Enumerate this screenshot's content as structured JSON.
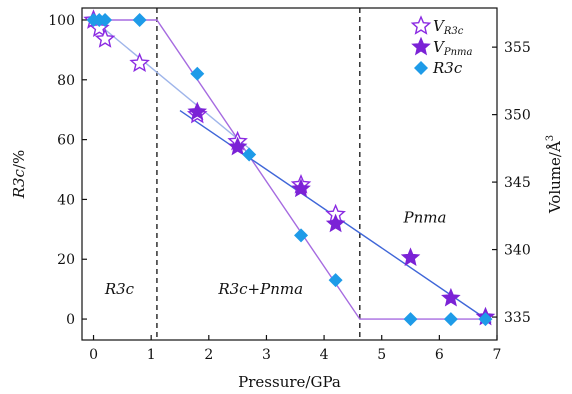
{
  "chart_data": {
    "type": "scatter",
    "xlabel": "Pressure/GPa",
    "ylabel_left_parts": [
      "R3c",
      "/%"
    ],
    "ylabel_right_parts": [
      "Volume/Å",
      "3"
    ],
    "xlim": [
      -0.2,
      7
    ],
    "ylim_left": [
      -7,
      104
    ],
    "ylim_right": [
      333.3,
      357.9
    ],
    "x_ticks": [
      0,
      1,
      2,
      3,
      4,
      5,
      6,
      7
    ],
    "y_left_ticks": [
      0,
      20,
      40,
      60,
      80,
      100
    ],
    "y_right_ticks": [
      335,
      340,
      345,
      350,
      355
    ],
    "phase_boundaries": [
      1.1,
      4.62
    ],
    "region_labels": [
      {
        "text": "R3c",
        "x": 0.45,
        "y_left": 10
      },
      {
        "text": "R3c+Pnma",
        "x": 2.9,
        "y_left": 10
      },
      {
        "text": "Pnma",
        "x": 5.75,
        "y_left": 34
      }
    ],
    "legend": [
      {
        "main": "V",
        "sub": "R3c",
        "marker": "open-star",
        "color": "#8B2BE2"
      },
      {
        "main": "V",
        "sub": "Pnma",
        "marker": "filled-star",
        "color": "#7B22D6"
      },
      {
        "main": "R3c",
        "sub": "",
        "marker": "diamond",
        "color": "#1E9BE8"
      }
    ],
    "series": [
      {
        "name": "V_R3c",
        "axis": "right",
        "marker": "open-star",
        "color": "#8B2BE2",
        "points": [
          [
            0.0,
            357.0
          ],
          [
            0.1,
            356.4
          ],
          [
            0.2,
            355.6
          ],
          [
            0.8,
            353.8
          ],
          [
            1.8,
            350.0
          ],
          [
            2.5,
            348.0
          ],
          [
            3.6,
            344.8
          ],
          [
            4.2,
            342.6
          ]
        ]
      },
      {
        "name": "V_Pnma",
        "axis": "right",
        "marker": "filled-star",
        "color": "#7B22D6",
        "points": [
          [
            1.8,
            350.2
          ],
          [
            2.5,
            347.6
          ],
          [
            3.6,
            344.5
          ],
          [
            4.2,
            341.9
          ],
          [
            5.5,
            339.4
          ],
          [
            6.2,
            336.4
          ],
          [
            6.8,
            335.0
          ]
        ]
      },
      {
        "name": "R3c",
        "axis": "left",
        "marker": "diamond",
        "color": "#1E9BE8",
        "points": [
          [
            0.0,
            100
          ],
          [
            0.1,
            100
          ],
          [
            0.2,
            100
          ],
          [
            0.8,
            100
          ],
          [
            1.8,
            82
          ],
          [
            2.7,
            55
          ],
          [
            3.6,
            28
          ],
          [
            4.2,
            13
          ],
          [
            5.5,
            0
          ],
          [
            6.2,
            0
          ],
          [
            6.8,
            0
          ]
        ]
      }
    ],
    "fit_lines": [
      {
        "id": "r3c-fraction",
        "axis": "left",
        "color": "#A66BE0",
        "points": [
          [
            0.0,
            100
          ],
          [
            1.1,
            100
          ],
          [
            4.62,
            0
          ],
          [
            6.8,
            0
          ]
        ]
      },
      {
        "id": "v-r3c-fit",
        "axis": "right",
        "color": "#9FB5EA",
        "points": [
          [
            0.0,
            357.0
          ],
          [
            2.7,
            347.5
          ]
        ]
      },
      {
        "id": "v-pnma-fit",
        "axis": "right",
        "color": "#3F66D8",
        "points": [
          [
            1.5,
            350.3
          ],
          [
            6.9,
            334.6
          ]
        ]
      }
    ]
  }
}
